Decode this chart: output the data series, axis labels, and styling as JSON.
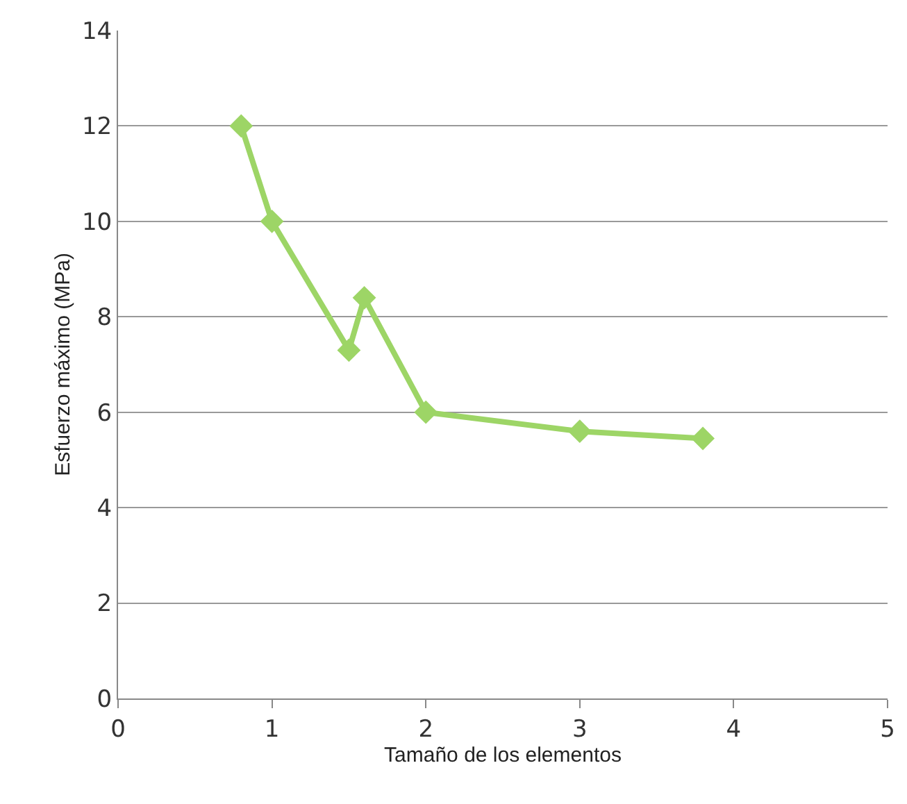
{
  "chart_data": {
    "type": "line",
    "xlabel": "Tamaño de los elementos",
    "ylabel": "Esfuerzo máximo (MPa)",
    "x": [
      0.8,
      1,
      1.5,
      1.6,
      2,
      3,
      3.8
    ],
    "series": [
      {
        "color": "#9dd566",
        "values": [
          12,
          10,
          7.3,
          8.4,
          6,
          5.6,
          5.45
        ]
      }
    ],
    "xlim": [
      0,
      5
    ],
    "xticks": [
      0,
      1,
      2,
      3,
      4,
      5
    ],
    "ylim": [
      0,
      14
    ],
    "yticks": [
      0,
      2,
      4,
      6,
      8,
      10,
      12,
      14
    ],
    "grid": "y",
    "marker": "diamond",
    "line_style": "solid"
  }
}
